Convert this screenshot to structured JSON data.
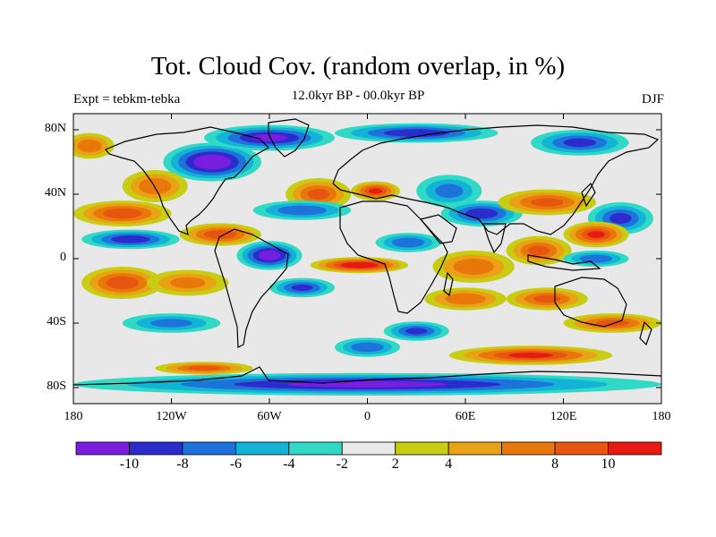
{
  "title": "Tot. Cloud Cov. (random overlap, in %)",
  "left_label": "Expt = tebkm-tebka",
  "center_label": "12.0kyr BP - 00.0kyr BP",
  "right_label": "DJF",
  "y_ticks": [
    {
      "label": "80N",
      "lat": 80
    },
    {
      "label": "40N",
      "lat": 40
    },
    {
      "label": "0",
      "lat": 0
    },
    {
      "label": "40S",
      "lat": -40
    },
    {
      "label": "80S",
      "lat": -80
    }
  ],
  "x_ticks": [
    {
      "label": "180",
      "lon": -180
    },
    {
      "label": "120W",
      "lon": -120
    },
    {
      "label": "60W",
      "lon": -60
    },
    {
      "label": "0",
      "lon": 0
    },
    {
      "label": "60E",
      "lon": 60
    },
    {
      "label": "120E",
      "lon": 120
    },
    {
      "label": "180",
      "lon": 180
    }
  ],
  "colorbar": {
    "levels": [
      -12,
      -10,
      -8,
      -6,
      -4,
      -2,
      2,
      4,
      6,
      8,
      10,
      12
    ],
    "colors": [
      "#7a1de0",
      "#2c2ccc",
      "#1e73db",
      "#12b3d6",
      "#2fd9c5",
      "#e8e8e8",
      "#c8cc12",
      "#e8a214",
      "#e8780a",
      "#e85510",
      "#e81a14"
    ],
    "labels": [
      {
        "text": "-10",
        "value": -10
      },
      {
        "text": "-8",
        "value": -8
      },
      {
        "text": "-6",
        "value": -6
      },
      {
        "text": "-4",
        "value": -4
      },
      {
        "text": "-2",
        "value": -2
      },
      {
        "text": "2",
        "value": 2
      },
      {
        "text": "4",
        "value": 4
      },
      {
        "text": "8",
        "value": 8
      },
      {
        "text": "10",
        "value": 10
      }
    ]
  },
  "chart_data": {
    "type": "heatmap",
    "variable": "Tot. Cloud Cov. (random overlap, in %)",
    "xrange": [
      -180,
      180
    ],
    "yrange": [
      -90,
      90
    ],
    "anomalies": [
      {
        "lon": -95,
        "lat": 60,
        "v": -12,
        "rx": 30,
        "ry": 12
      },
      {
        "lon": -60,
        "lat": 75,
        "v": -10,
        "rx": 40,
        "ry": 8
      },
      {
        "lon": 30,
        "lat": 78,
        "v": -9,
        "rx": 50,
        "ry": 6
      },
      {
        "lon": 130,
        "lat": 72,
        "v": -8,
        "rx": 30,
        "ry": 8
      },
      {
        "lon": -170,
        "lat": 70,
        "v": 7,
        "rx": 15,
        "ry": 8
      },
      {
        "lon": -130,
        "lat": 45,
        "v": 7,
        "rx": 20,
        "ry": 10
      },
      {
        "lon": -150,
        "lat": 28,
        "v": 9,
        "rx": 30,
        "ry": 8
      },
      {
        "lon": -30,
        "lat": 40,
        "v": 8,
        "rx": 20,
        "ry": 10
      },
      {
        "lon": 5,
        "lat": 42,
        "v": 10,
        "rx": 15,
        "ry": 6
      },
      {
        "lon": -40,
        "lat": 30,
        "v": -7,
        "rx": 30,
        "ry": 6
      },
      {
        "lon": 50,
        "lat": 42,
        "v": -6,
        "rx": 20,
        "ry": 10
      },
      {
        "lon": 70,
        "lat": 28,
        "v": -9,
        "rx": 25,
        "ry": 8
      },
      {
        "lon": 110,
        "lat": 35,
        "v": 8,
        "rx": 30,
        "ry": 8
      },
      {
        "lon": 155,
        "lat": 25,
        "v": -8,
        "rx": 20,
        "ry": 10
      },
      {
        "lon": 140,
        "lat": 15,
        "v": 10,
        "rx": 20,
        "ry": 8
      },
      {
        "lon": -145,
        "lat": 12,
        "v": -9,
        "rx": 30,
        "ry": 6
      },
      {
        "lon": -90,
        "lat": 15,
        "v": 9,
        "rx": 25,
        "ry": 7
      },
      {
        "lon": -60,
        "lat": 2,
        "v": -11,
        "rx": 20,
        "ry": 9
      },
      {
        "lon": -5,
        "lat": -4,
        "v": 12,
        "rx": 30,
        "ry": 5
      },
      {
        "lon": 25,
        "lat": 10,
        "v": -7,
        "rx": 20,
        "ry": 6
      },
      {
        "lon": 65,
        "lat": -5,
        "v": 7,
        "rx": 25,
        "ry": 10
      },
      {
        "lon": 105,
        "lat": 5,
        "v": 8,
        "rx": 20,
        "ry": 9
      },
      {
        "lon": 140,
        "lat": 0,
        "v": -7,
        "rx": 20,
        "ry": 5
      },
      {
        "lon": -150,
        "lat": -15,
        "v": 9,
        "rx": 25,
        "ry": 10
      },
      {
        "lon": -110,
        "lat": -15,
        "v": 6,
        "rx": 25,
        "ry": 8
      },
      {
        "lon": -40,
        "lat": -18,
        "v": -8,
        "rx": 20,
        "ry": 6
      },
      {
        "lon": 60,
        "lat": -25,
        "v": 7,
        "rx": 25,
        "ry": 7
      },
      {
        "lon": 110,
        "lat": -25,
        "v": 8,
        "rx": 25,
        "ry": 7
      },
      {
        "lon": -120,
        "lat": -40,
        "v": -6,
        "rx": 30,
        "ry": 6
      },
      {
        "lon": 30,
        "lat": -45,
        "v": -8,
        "rx": 20,
        "ry": 6
      },
      {
        "lon": 0,
        "lat": -55,
        "v": -7,
        "rx": 20,
        "ry": 6
      },
      {
        "lon": 150,
        "lat": -40,
        "v": 8,
        "rx": 30,
        "ry": 6
      },
      {
        "lon": 100,
        "lat": -60,
        "v": 10,
        "rx": 50,
        "ry": 6
      },
      {
        "lon": 0,
        "lat": -78,
        "v": -10,
        "rx": 180,
        "ry": 7
      },
      {
        "lon": -100,
        "lat": -68,
        "v": 8,
        "rx": 30,
        "ry": 4
      }
    ]
  }
}
